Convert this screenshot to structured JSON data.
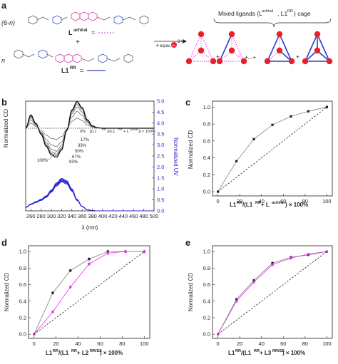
{
  "panel_labels": {
    "a": "a",
    "b": "b",
    "c": "c",
    "d": "d",
    "e": "e"
  },
  "scheme": {
    "coef_achiral": "(6-n)",
    "coef_chiral": "n",
    "achiral_label": "L",
    "achiral_sup": "achiral",
    "eq": "=",
    "plus": "+",
    "chiral_label": "L1",
    "chiral_sup": "RR",
    "cage_title_pre": "Mixed ligands (L",
    "cage_title_sup1": "achiral",
    "cage_title_mid": ", L1",
    "cage_title_sup2": "RR",
    "cage_title_post": ") cage",
    "reagent": "4 equiv.",
    "metal_sup": "3+",
    "metal_symbol": "Eu",
    "dots": "+...+",
    "colors": {
      "achiral": "#e62ee6",
      "chiral": "#2b3fc8",
      "ligand_body": "#d9249b",
      "metal": "#e8202a"
    }
  },
  "chart_data": [
    {
      "id": "b",
      "type": "line",
      "xlabel": "λ (nm)",
      "ylabel": "Normalized CD",
      "y2label": "Normalized UV",
      "xlim": [
        250,
        500
      ],
      "y2lim": [
        0,
        5.0
      ],
      "xticks": [
        260,
        280,
        300,
        320,
        340,
        360,
        380,
        400,
        420,
        440,
        460,
        480,
        500
      ],
      "y2ticks": [
        "0.0",
        "0.5",
        "1.0",
        "1.5",
        "2.0",
        "2.5",
        "3.0",
        "3.5",
        "4.0",
        "4.5",
        "5.0"
      ],
      "legend_title_parts": [
        "[(L1",
        "RR",
        ")/(L1",
        "RR",
        " + L",
        "achiral",
        ")] × 100%"
      ],
      "legend_first": "0%",
      "series_labels": [
        "17%",
        "33%",
        "50%",
        "67%",
        "83%"
      ],
      "label_100": "100%",
      "cd_series": [
        {
          "name": "0%",
          "amp": 0.0
        },
        {
          "name": "17%",
          "amp": 0.38
        },
        {
          "name": "33%",
          "amp": 0.63
        },
        {
          "name": "50%",
          "amp": 0.79
        },
        {
          "name": "67%",
          "amp": 0.89
        },
        {
          "name": "83%",
          "amp": 0.95
        },
        {
          "name": "100%",
          "amp": 1.0
        }
      ],
      "cd_shape": {
        "x": [
          250,
          260,
          270,
          280,
          290,
          300,
          310,
          320,
          330,
          340,
          350,
          360,
          370,
          380,
          390,
          400
        ],
        "y": [
          0,
          0.55,
          0.2,
          -0.25,
          -0.75,
          -1.1,
          -1.2,
          -0.9,
          -0.1,
          0.75,
          1.1,
          0.85,
          0.35,
          0.1,
          0.02,
          0
        ]
      },
      "uv_shape": {
        "x": [
          250,
          260,
          270,
          280,
          290,
          300,
          310,
          320,
          330,
          340,
          350,
          360,
          370,
          380,
          390
        ],
        "y": [
          0.15,
          0.3,
          0.4,
          0.5,
          0.65,
          0.9,
          1.2,
          1.4,
          1.3,
          0.95,
          0.5,
          0.2,
          0.05,
          0.01,
          0
        ]
      }
    },
    {
      "id": "c",
      "type": "line",
      "xlabel_parts": [
        "L1",
        "RR",
        "/(L1",
        "RR",
        " + L",
        "achiral",
        ") × 100%"
      ],
      "ylabel": "Normalized CD",
      "xlim": [
        -5,
        105
      ],
      "ylim": [
        -0.05,
        1.07
      ],
      "xticks": [
        "0",
        "20",
        "40",
        "60",
        "80",
        "100"
      ],
      "yticks": [
        "0.0",
        "0.2",
        "0.4",
        "0.6",
        "0.8",
        "1.0"
      ],
      "series": [
        {
          "name": "measured",
          "color": "#808080",
          "x": [
            0,
            17,
            33,
            50,
            67,
            83,
            100
          ],
          "y": [
            0.0,
            0.36,
            0.62,
            0.79,
            0.89,
            0.95,
            1.0
          ],
          "err": [
            0,
            0.01,
            0.01,
            0.01,
            0.01,
            0.01,
            0.02
          ]
        },
        {
          "name": "linear",
          "dashed": true,
          "x": [
            0,
            100
          ],
          "y": [
            0,
            1.0
          ]
        }
      ]
    },
    {
      "id": "d",
      "type": "line",
      "xlabel_parts": [
        "L1",
        "RR",
        "/(L1",
        "RR",
        " + L2",
        "RR/SS",
        ") × 100%"
      ],
      "ylabel": "Normalized CD",
      "xlim": [
        -5,
        105
      ],
      "ylim": [
        -0.05,
        1.07
      ],
      "xticks": [
        "0",
        "20",
        "40",
        "60",
        "80",
        "100"
      ],
      "yticks": [
        "0.0",
        "0.2",
        "0.4",
        "0.6",
        "0.8",
        "1.0"
      ],
      "series": [
        {
          "name": "black",
          "color": "#808080",
          "x": [
            0,
            17,
            33,
            50,
            67,
            83,
            100
          ],
          "y": [
            0.0,
            0.5,
            0.77,
            0.91,
            1.0,
            1.0,
            1.0
          ],
          "err": [
            0,
            0.02,
            0.02,
            0.02,
            0.03,
            0.02,
            0.02
          ]
        },
        {
          "name": "magenta",
          "color": "#e62ee6",
          "x": [
            0,
            17,
            33,
            50,
            67,
            83,
            100
          ],
          "y": [
            0.0,
            0.27,
            0.57,
            0.85,
            0.98,
            1.0,
            1.0
          ],
          "err": [
            0,
            0.02,
            0.02,
            0.03,
            0.03,
            0.02,
            0.01
          ]
        },
        {
          "name": "linear",
          "dashed": true,
          "x": [
            0,
            100
          ],
          "y": [
            0,
            1.0
          ]
        }
      ]
    },
    {
      "id": "e",
      "type": "line",
      "xlabel_parts": [
        "L1",
        "RR",
        "/(L1",
        "RR",
        " + L3",
        "RR/SS",
        ") × 100%"
      ],
      "ylabel": "Normalized CD",
      "xlim": [
        -5,
        105
      ],
      "ylim": [
        -0.05,
        1.07
      ],
      "xticks": [
        "0",
        "20",
        "40",
        "60",
        "80",
        "100"
      ],
      "yticks": [
        "0.0",
        "0.2",
        "0.4",
        "0.6",
        "0.8",
        "1.0"
      ],
      "series": [
        {
          "name": "black",
          "color": "#808080",
          "x": [
            0,
            17,
            33,
            50,
            67,
            83,
            100
          ],
          "y": [
            0.0,
            0.42,
            0.65,
            0.86,
            0.93,
            0.96,
            1.0
          ],
          "err": [
            0,
            0.02,
            0.02,
            0.02,
            0.02,
            0.01,
            0.01
          ]
        },
        {
          "name": "magenta",
          "color": "#e62ee6",
          "x": [
            0,
            17,
            33,
            50,
            67,
            83,
            100
          ],
          "y": [
            0.0,
            0.4,
            0.63,
            0.84,
            0.92,
            0.97,
            1.0
          ],
          "err": [
            0,
            0.02,
            0.02,
            0.02,
            0.02,
            0.01,
            0.01
          ]
        },
        {
          "name": "linear",
          "dashed": true,
          "x": [
            0,
            100
          ],
          "y": [
            0,
            1.0
          ]
        }
      ]
    }
  ]
}
